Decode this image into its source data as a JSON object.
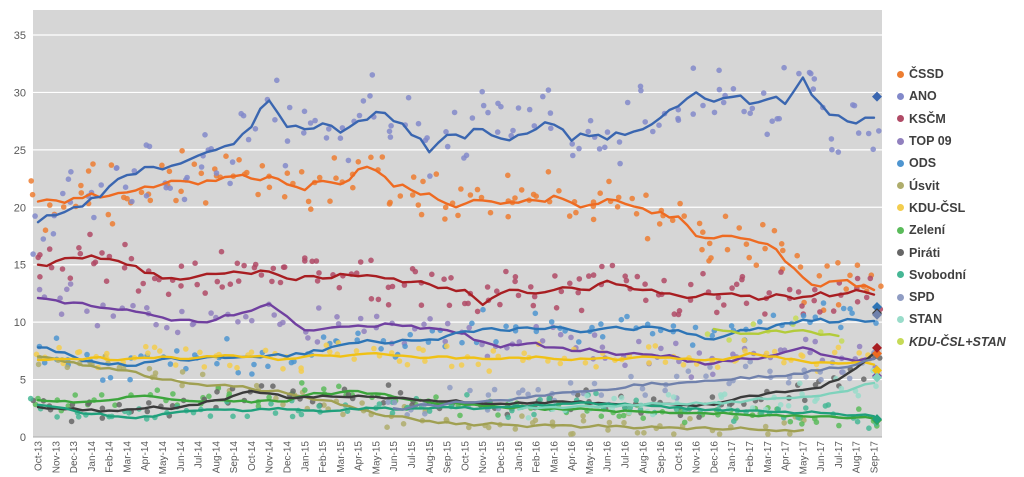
{
  "chart_data": {
    "type": "scatter",
    "title": "",
    "xlabel": "",
    "ylabel": "",
    "ylim": [
      0,
      37.2
    ],
    "yticks": [
      0,
      5,
      10,
      15,
      20,
      25,
      30,
      35
    ],
    "grid": "horizontal-white-on-gray",
    "legend_position": "right",
    "colors": {
      "plot_bg": "#d6d6d6",
      "grid": "#ffffff",
      "axis_line": "#ababab",
      "axis_text": "#595959",
      "legend_text": "#3f3f3f"
    },
    "x_labels": [
      "Oct-13",
      "Nov-13",
      "Dec-13",
      "Jan-14",
      "Feb-14",
      "Mar-14",
      "Apr-14",
      "May-14",
      "Jun-14",
      "Jul-14",
      "Aug-14",
      "Sep-14",
      "Oct-14",
      "Nov-14",
      "Dec-14",
      "Jan-15",
      "Feb-15",
      "Mar-15",
      "Apr-15",
      "May-15",
      "Jun-15",
      "Jul-15",
      "Aug-15",
      "Sep-15",
      "Oct-15",
      "Nov-15",
      "Dec-15",
      "Jan-16",
      "Feb-16",
      "Mar-16",
      "Apr-16",
      "May-16",
      "Jun-16",
      "Jul-16",
      "Aug-16",
      "Sep-16",
      "Oct-16",
      "Nov-16",
      "Dec-16",
      "Jan-17",
      "Feb-17",
      "Mar-17",
      "Apr-17",
      "May-17",
      "Jun-17",
      "Jul-17",
      "Aug-17",
      "Sep-17"
    ],
    "series": [
      {
        "name": "ČSSD",
        "color": "#ee6b22",
        "dot": "#ed7d31",
        "amp": 2.2,
        "dots_per_month": 3,
        "final": 7.27,
        "values": [
          20.5,
          20.6,
          20.8,
          21.2,
          21.0,
          21.3,
          21.8,
          22.0,
          22.3,
          22.0,
          22.3,
          22.7,
          22.5,
          22.7,
          22.0,
          21.5,
          22.3,
          22.0,
          23.3,
          23.2,
          21.8,
          21.5,
          21.2,
          20.3,
          20.3,
          20.6,
          20.3,
          20.4,
          20.6,
          21.0,
          20.4,
          20.2,
          20.7,
          20.3,
          19.9,
          19.6,
          19.2,
          17.5,
          17.3,
          17.5,
          17.2,
          16.8,
          15.3,
          13.9,
          13.1,
          13.6,
          13.1,
          12.8
        ]
      },
      {
        "name": "ANO",
        "color": "#3a66b0",
        "dot": "#8289ca",
        "amp": 3.2,
        "dots_per_month": 3,
        "final": 29.64,
        "values": [
          18.7,
          19.3,
          20.0,
          20.8,
          21.8,
          22.8,
          23.5,
          23.3,
          23.8,
          24.5,
          25.0,
          25.5,
          27.0,
          29.3,
          27.0,
          26.8,
          27.3,
          26.5,
          27.5,
          28.3,
          27.5,
          26.3,
          24.8,
          26.3,
          26.0,
          26.8,
          26.0,
          26.3,
          26.8,
          27.2,
          25.8,
          26.2,
          25.9,
          26.3,
          26.8,
          27.8,
          28.8,
          30.0,
          29.2,
          29.6,
          29.0,
          29.4,
          29.0,
          31.3,
          29.0,
          28.0,
          27.3,
          27.8
        ]
      },
      {
        "name": "KSČM",
        "color": "#a81e22",
        "dot": "#b04a66",
        "amp": 1.8,
        "dots_per_month": 3,
        "final": 7.76,
        "values": [
          15.0,
          15.3,
          15.6,
          15.8,
          15.5,
          15.0,
          14.3,
          13.8,
          13.7,
          14.0,
          14.2,
          14.4,
          14.2,
          14.4,
          13.8,
          14.0,
          13.8,
          14.2,
          14.0,
          14.0,
          13.8,
          13.5,
          13.3,
          13.0,
          12.8,
          11.5,
          12.5,
          12.8,
          12.5,
          12.8,
          13.0,
          12.8,
          13.6,
          13.2,
          12.8,
          12.5,
          12.3,
          12.2,
          12.4,
          12.5,
          12.3,
          12.1,
          12.3,
          12.2,
          12.6,
          12.4,
          12.8,
          12.4
        ]
      },
      {
        "name": "TOP 09",
        "color": "#7040a0",
        "dot": "#9180be",
        "amp": 1.4,
        "dots_per_month": 2,
        "final": 5.31,
        "values": [
          12.1,
          11.9,
          11.7,
          11.4,
          11.2,
          11.1,
          10.8,
          10.4,
          10.2,
          10.0,
          10.2,
          10.6,
          11.0,
          11.6,
          10.5,
          9.3,
          9.4,
          9.6,
          9.7,
          9.6,
          9.8,
          9.7,
          9.5,
          9.3,
          9.0,
          8.3,
          7.8,
          8.0,
          8.2,
          7.8,
          7.5,
          7.7,
          7.4,
          7.2,
          7.2,
          7.0,
          6.9,
          6.6,
          6.4,
          6.6,
          6.8,
          7.0,
          7.4,
          7.8,
          7.2,
          6.9,
          6.6,
          6.8
        ]
      },
      {
        "name": "ODS",
        "color": "#2e75b6",
        "dot": "#4e95d0",
        "amp": 1.4,
        "dots_per_month": 2,
        "final": 11.32,
        "values": [
          7.8,
          7.4,
          7.0,
          6.6,
          6.3,
          6.2,
          6.5,
          6.8,
          6.7,
          6.8,
          7.0,
          6.9,
          7.0,
          7.1,
          7.0,
          7.2,
          7.5,
          8.0,
          8.2,
          8.3,
          8.2,
          8.4,
          8.5,
          8.8,
          9.2,
          9.4,
          9.3,
          9.5,
          9.4,
          9.6,
          9.3,
          9.2,
          9.5,
          9.4,
          9.6,
          9.5,
          9.3,
          8.9,
          8.5,
          9.0,
          9.3,
          9.4,
          9.9,
          10.2,
          10.3,
          10.0,
          10.2,
          10.1
        ]
      },
      {
        "name": "Úsvit",
        "color": "#a0a052",
        "dot": "#afad6c",
        "amp": 1.0,
        "dots_per_month": 2,
        "final": null,
        "values": [
          7.0,
          6.8,
          6.5,
          6.2,
          6.0,
          5.8,
          5.3,
          5.0,
          4.8,
          4.6,
          4.5,
          4.4,
          4.2,
          4.0,
          3.8,
          3.5,
          3.2,
          2.8,
          2.4,
          2.0,
          1.8,
          1.6,
          1.4,
          1.3,
          1.2,
          1.1,
          1.1,
          1.0,
          1.0,
          1.0,
          1.0,
          0.9,
          0.9,
          0.9,
          0.8,
          0.8,
          0.8,
          0.8,
          0.7,
          0.7,
          0.7,
          0.6,
          0.6,
          0.6,
          null,
          null,
          null,
          null
        ]
      },
      {
        "name": "KDU-ČSL",
        "color": "#f0c115",
        "dot": "#f3cd4e",
        "amp": 1.1,
        "dots_per_month": 2,
        "final": 5.8,
        "values": [
          6.7,
          6.8,
          6.8,
          6.9,
          6.7,
          6.8,
          6.9,
          7.0,
          6.8,
          6.9,
          7.0,
          7.1,
          7.0,
          6.9,
          6.8,
          7.0,
          7.1,
          7.0,
          7.2,
          7.3,
          7.1,
          7.0,
          6.9,
          7.0,
          6.9,
          6.8,
          6.8,
          6.9,
          7.0,
          6.8,
          6.7,
          6.8,
          6.9,
          6.8,
          7.0,
          6.9,
          6.8,
          6.7,
          6.8,
          6.9,
          7.3,
          7.0,
          6.8,
          6.6,
          6.5,
          6.4,
          6.5,
          6.3
        ]
      },
      {
        "name": "Zelení",
        "color": "#3ca53c",
        "dot": "#5abb5a",
        "amp": 0.9,
        "dots_per_month": 2,
        "final": 1.47,
        "values": [
          3.2,
          3.1,
          3.0,
          3.1,
          3.2,
          3.5,
          3.6,
          3.4,
          3.2,
          3.1,
          3.2,
          3.1,
          3.0,
          3.2,
          3.1,
          3.6,
          3.8,
          3.9,
          4.0,
          3.8,
          3.5,
          3.2,
          3.0,
          2.9,
          2.8,
          2.7,
          2.6,
          2.6,
          2.5,
          2.5,
          2.4,
          2.4,
          2.3,
          2.3,
          2.2,
          2.2,
          2.1,
          2.1,
          2.0,
          2.0,
          1.9,
          1.9,
          1.8,
          1.8,
          1.8,
          1.7,
          1.7,
          1.6
        ]
      },
      {
        "name": "Piráti",
        "color": "#3b3b3b",
        "dot": "#666666",
        "amp": 1.0,
        "dots_per_month": 2,
        "final": 10.79,
        "values": [
          2.6,
          2.5,
          2.5,
          2.4,
          2.3,
          2.4,
          2.5,
          2.5,
          2.6,
          2.8,
          3.2,
          3.6,
          4.0,
          3.8,
          3.4,
          3.5,
          3.6,
          3.5,
          3.6,
          3.5,
          3.4,
          3.3,
          3.2,
          3.1,
          3.0,
          2.9,
          2.9,
          3.0,
          3.0,
          3.1,
          3.0,
          2.9,
          2.9,
          2.8,
          2.8,
          2.9,
          2.8,
          2.7,
          2.8,
          3.2,
          3.6,
          3.8,
          3.9,
          4.1,
          4.3,
          5.0,
          6.0,
          7.3
        ]
      },
      {
        "name": "Svobodní",
        "color": "#20a07c",
        "dot": "#46b795",
        "amp": 0.9,
        "dots_per_month": 2,
        "final": 1.56,
        "values": [
          2.8,
          2.6,
          2.3,
          2.0,
          1.8,
          1.7,
          1.8,
          2.0,
          2.2,
          2.3,
          2.4,
          2.4,
          2.3,
          2.4,
          2.4,
          2.3,
          2.2,
          2.3,
          2.4,
          2.5,
          2.4,
          2.5,
          2.5,
          2.6,
          2.6,
          2.5,
          2.6,
          2.7,
          2.8,
          2.8,
          2.9,
          3.0,
          2.9,
          2.9,
          2.8,
          2.7,
          2.6,
          2.5,
          2.4,
          2.4,
          2.3,
          2.2,
          2.2,
          2.1,
          2.1,
          2.0,
          1.9,
          1.8
        ]
      },
      {
        "name": "SPD",
        "color": "#7081ac",
        "dot": "#8f9cc3",
        "amp": 1.2,
        "dots_per_month": 2,
        "final": 10.64,
        "values": [
          null,
          null,
          null,
          null,
          null,
          null,
          null,
          null,
          null,
          null,
          null,
          null,
          null,
          null,
          null,
          null,
          null,
          null,
          null,
          null,
          2.5,
          2.6,
          2.8,
          2.9,
          3.0,
          3.1,
          3.2,
          3.4,
          3.6,
          3.8,
          3.9,
          4.0,
          4.1,
          4.3,
          4.5,
          4.6,
          4.7,
          4.8,
          4.9,
          5.0,
          5.1,
          5.2,
          5.3,
          5.5,
          5.8,
          6.0,
          6.3,
          6.8
        ]
      },
      {
        "name": "STAN",
        "color": "#7fd2bc",
        "dot": "#99dcca",
        "amp": 0.9,
        "dots_per_month": 2,
        "final": 5.18,
        "values": [
          null,
          null,
          null,
          null,
          null,
          null,
          null,
          null,
          null,
          null,
          null,
          null,
          null,
          null,
          null,
          null,
          null,
          null,
          null,
          null,
          null,
          null,
          null,
          null,
          null,
          null,
          null,
          2.4,
          2.5,
          2.6,
          2.6,
          2.7,
          2.7,
          2.8,
          2.8,
          2.9,
          2.9,
          3.0,
          3.0,
          3.1,
          3.2,
          3.3,
          3.4,
          3.5,
          3.6,
          3.9,
          4.3,
          4.7
        ]
      },
      {
        "name": "KDU-ČSL+STAN",
        "color": "#b3cb3a",
        "dot": "#c6da57",
        "amp": 1.0,
        "dots_per_month": 1,
        "italic": true,
        "final": null,
        "values": [
          null,
          null,
          null,
          null,
          null,
          null,
          null,
          null,
          null,
          null,
          null,
          null,
          null,
          null,
          null,
          null,
          null,
          null,
          null,
          null,
          null,
          null,
          null,
          null,
          null,
          null,
          null,
          null,
          null,
          null,
          null,
          null,
          null,
          null,
          null,
          null,
          null,
          null,
          9.4,
          9.2,
          9.0,
          9.2,
          9.1,
          9.3,
          8.9,
          8.8,
          null,
          null
        ]
      }
    ]
  }
}
